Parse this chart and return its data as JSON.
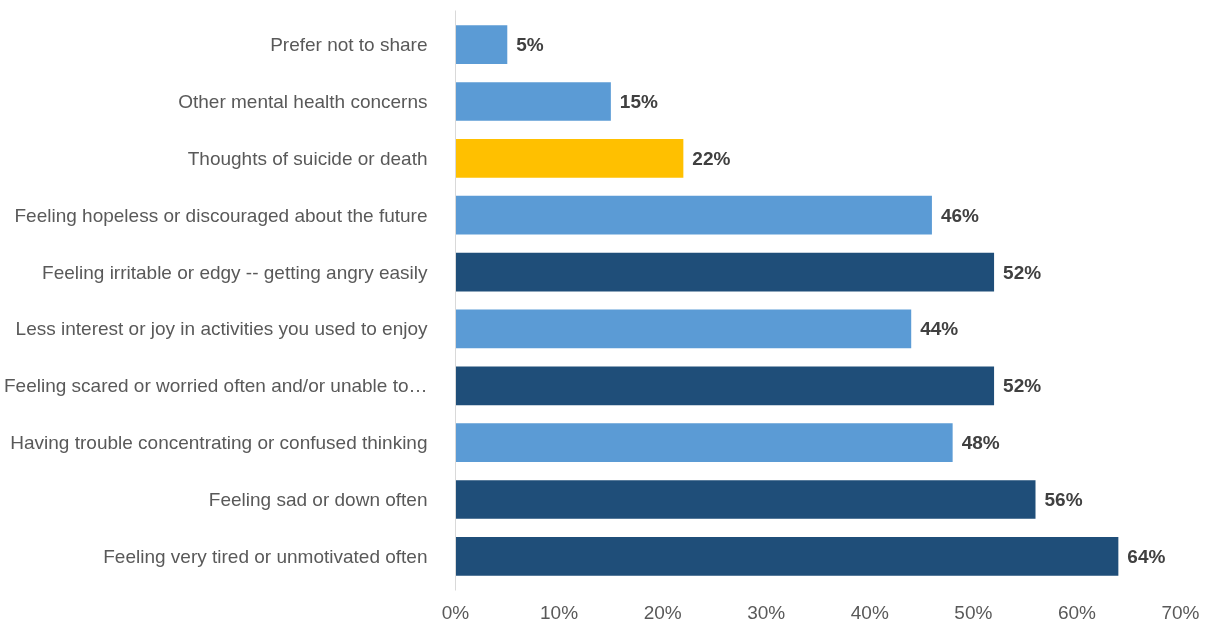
{
  "chart_data": {
    "type": "bar",
    "orientation": "horizontal",
    "categories": [
      "Prefer not to share",
      "Other mental health concerns",
      "Thoughts of suicide or death",
      "Feeling hopeless or discouraged about the future",
      "Feeling irritable or edgy -- getting angry easily",
      "Less interest or joy in activities you used to enjoy",
      "Feeling scared or worried often and/or unable to…",
      "Having trouble concentrating or confused thinking",
      "Feeling sad or down often",
      "Feeling very tired or unmotivated often"
    ],
    "values": [
      5,
      15,
      22,
      46,
      52,
      44,
      52,
      48,
      56,
      64
    ],
    "value_labels": [
      "5%",
      "15%",
      "22%",
      "46%",
      "52%",
      "44%",
      "52%",
      "48%",
      "56%",
      "64%"
    ],
    "colors": [
      "#5b9bd5",
      "#5b9bd5",
      "#ffc000",
      "#5b9bd5",
      "#1f4e79",
      "#5b9bd5",
      "#1f4e79",
      "#5b9bd5",
      "#1f4e79",
      "#1f4e79"
    ],
    "xlim": [
      0,
      70
    ],
    "xticks": [
      {
        "value": 0,
        "label": "0%"
      },
      {
        "value": 10,
        "label": "10%"
      },
      {
        "value": 20,
        "label": "20%"
      },
      {
        "value": 30,
        "label": "30%"
      },
      {
        "value": 40,
        "label": "40%"
      },
      {
        "value": 50,
        "label": "50%"
      },
      {
        "value": 60,
        "label": "60%"
      },
      {
        "value": 70,
        "label": "70%"
      }
    ],
    "grid": false
  }
}
